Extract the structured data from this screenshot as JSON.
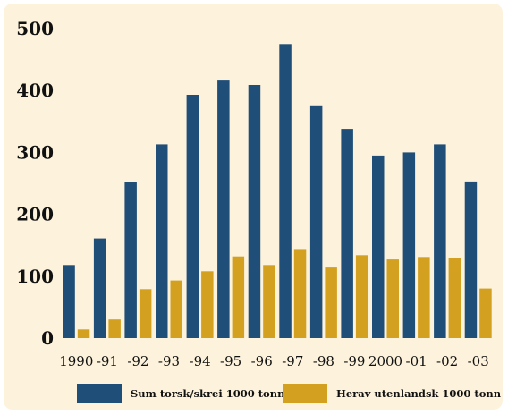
{
  "chart_data": {
    "type": "bar",
    "categories": [
      "1990",
      "-91",
      "-92",
      "-93",
      "-94",
      "-95",
      "-96",
      "-97",
      "-98",
      "-99",
      "2000",
      "-01",
      "-02",
      "-03"
    ],
    "series": [
      {
        "name": "Sum torsk/skrei 1000 tonn",
        "color": "#1f4e79",
        "values": [
          118,
          161,
          252,
          313,
          393,
          416,
          409,
          475,
          376,
          338,
          295,
          300,
          313,
          253
        ]
      },
      {
        "name": "Herav utenlandsk 1000 tonn",
        "color": "#d4a020",
        "values": [
          14,
          30,
          79,
          93,
          108,
          132,
          118,
          144,
          114,
          134,
          127,
          131,
          129,
          80
        ]
      }
    ],
    "yticks": [
      "0",
      "100",
      "200",
      "300",
      "400",
      "500"
    ],
    "ylim": [
      0,
      500
    ],
    "grid": false,
    "legend_position": "bottom"
  }
}
